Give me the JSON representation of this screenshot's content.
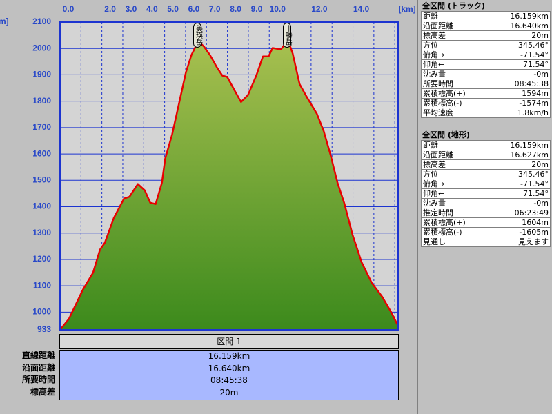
{
  "chart_data": {
    "type": "area",
    "y_unit": "[m]",
    "x_unit": "[km]",
    "xlim": [
      0,
      16.159
    ],
    "ylim": [
      933,
      2100
    ],
    "xticks": [
      {
        "value": 0,
        "label": "0.0"
      },
      {
        "value": 2,
        "label": "2.0"
      },
      {
        "value": 3,
        "label": "3.0"
      },
      {
        "value": 4,
        "label": "4.0"
      },
      {
        "value": 5,
        "label": "5.0"
      },
      {
        "value": 6,
        "label": "6.0"
      },
      {
        "value": 7,
        "label": "7.0"
      },
      {
        "value": 8,
        "label": "8.0"
      },
      {
        "value": 9,
        "label": "9.0"
      },
      {
        "value": 10,
        "label": "10.0"
      },
      {
        "value": 12,
        "label": "12.0"
      },
      {
        "value": 14,
        "label": "14.0"
      }
    ],
    "x_minor_ticks": [
      1,
      11,
      13,
      15,
      16
    ],
    "yticks": [
      933,
      1000,
      1100,
      1200,
      1300,
      1400,
      1500,
      1600,
      1700,
      1800,
      1900,
      2000,
      2100
    ],
    "grid": true,
    "fill_top": "#a8c050",
    "fill_bottom": "#3c8a1c",
    "line_color": "#e80000",
    "x": [
      0,
      0.43,
      1.09,
      1.58,
      1.91,
      2.14,
      2.57,
      3.06,
      3.32,
      3.72,
      4.05,
      4.31,
      4.57,
      4.87,
      5.03,
      5.36,
      5.69,
      6.02,
      6.28,
      6.61,
      6.88,
      7.17,
      7.5,
      7.76,
      7.99,
      8.32,
      8.65,
      8.98,
      9.38,
      9.7,
      9.97,
      10.16,
      10.56,
      10.89,
      11.12,
      11.45,
      11.78,
      12.27,
      12.6,
      12.93,
      13.26,
      13.59,
      13.98,
      14.41,
      14.9,
      15.39,
      15.82,
      16.12
    ],
    "values": [
      933,
      975,
      1085,
      1150,
      1237,
      1263,
      1357,
      1431,
      1438,
      1486,
      1462,
      1415,
      1410,
      1491,
      1583,
      1674,
      1792,
      1910,
      1975,
      2028,
      2007,
      1975,
      1928,
      1897,
      1892,
      1844,
      1797,
      1823,
      1897,
      1970,
      1970,
      2002,
      1996,
      2033,
      1981,
      1865,
      1818,
      1753,
      1687,
      1596,
      1491,
      1412,
      1294,
      1190,
      1111,
      1059,
      1001,
      954
    ],
    "annotations": [
      {
        "text": "美瑛岳",
        "x": 6.61
      },
      {
        "text": "十勝岳",
        "x": 10.89
      }
    ]
  },
  "section": {
    "title": "区間 1",
    "rows": [
      [
        "直線距離",
        "16.159km"
      ],
      [
        "沿面距離",
        "16.640km"
      ],
      [
        "所要時間",
        "08:45:38"
      ],
      [
        "標高差",
        "20m"
      ]
    ]
  },
  "track_panel": {
    "title": "全区間 (トラック)",
    "rows": [
      [
        "距離",
        "16.159km"
      ],
      [
        "沿面距離",
        "16.640km"
      ],
      [
        "標高差",
        "20m"
      ],
      [
        "方位",
        "345.46°"
      ],
      [
        "俯角→",
        "-71.54°"
      ],
      [
        "仰角←",
        "71.54°"
      ],
      [
        "沈み量",
        "-0m"
      ],
      [
        "所要時間",
        "08:45:38"
      ],
      [
        "累積標高(+)",
        "1594m"
      ],
      [
        "累積標高(-)",
        "-1574m"
      ],
      [
        "平均速度",
        "1.8km/h"
      ]
    ]
  },
  "terrain_panel": {
    "title": "全区間 (地形)",
    "rows": [
      [
        "距離",
        "16.159km"
      ],
      [
        "沿面距離",
        "16.627km"
      ],
      [
        "標高差",
        "20m"
      ],
      [
        "方位",
        "345.46°"
      ],
      [
        "俯角→",
        "-71.54°"
      ],
      [
        "仰角←",
        "71.54°"
      ],
      [
        "沈み量",
        "-0m"
      ],
      [
        "推定時間",
        "06:23:49"
      ],
      [
        "累積標高(+)",
        "1604m"
      ],
      [
        "累積標高(-)",
        "-1605m"
      ],
      [
        "見通し",
        "見えます"
      ]
    ]
  }
}
